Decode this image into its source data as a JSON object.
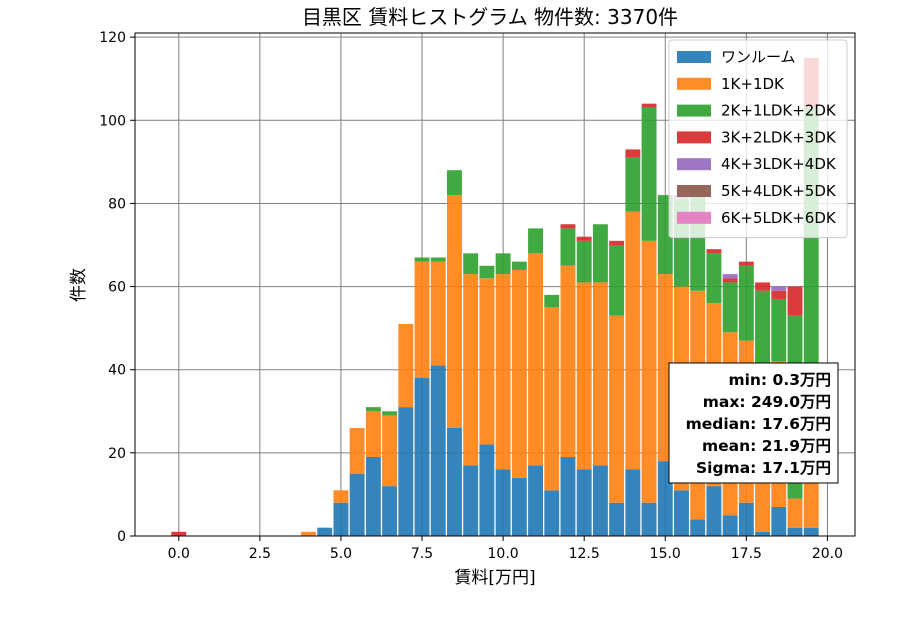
{
  "chart_data": {
    "type": "bar",
    "stacked": true,
    "title": "目黒区 賃料ヒストグラム  物件数: 3370件",
    "xlabel": "賃料[万円]",
    "ylabel": "件数",
    "xlim": [
      -1.35,
      20.85
    ],
    "ylim": [
      0,
      121
    ],
    "xticks": [
      "0.0",
      "2.5",
      "5.0",
      "7.5",
      "10.0",
      "12.5",
      "15.0",
      "17.5",
      "20.0"
    ],
    "yticks": [
      "0",
      "20",
      "40",
      "60",
      "80",
      "100",
      "120"
    ],
    "grid": true,
    "bin_width": 0.5,
    "bar_width": 0.46,
    "x": [
      0,
      4,
      4.5,
      5,
      5.5,
      6,
      6.5,
      7,
      7.5,
      8,
      8.5,
      9,
      9.5,
      10,
      10.5,
      11,
      11.5,
      12,
      12.5,
      13,
      13.5,
      14,
      14.5,
      15,
      15.5,
      16,
      16.5,
      17,
      17.5,
      18,
      18.5,
      19,
      19.5
    ],
    "series": [
      {
        "name": "ワンルーム",
        "color": "#1f77b4",
        "values": [
          0,
          0,
          2,
          8,
          15,
          19,
          12,
          31,
          38,
          41,
          26,
          17,
          22,
          16,
          14,
          17,
          11,
          19,
          16,
          17,
          8,
          16,
          8,
          18,
          11,
          4,
          12,
          5,
          8,
          1,
          7,
          2,
          2
        ]
      },
      {
        "name": "1K+1DK",
        "color": "#ff7f0e",
        "values": [
          0,
          1,
          0,
          3,
          11,
          11,
          17,
          20,
          28,
          25,
          56,
          46,
          40,
          47,
          50,
          51,
          44,
          46,
          45,
          44,
          45,
          62,
          63,
          45,
          49,
          55,
          44,
          44,
          39,
          35,
          35,
          7,
          14
        ]
      },
      {
        "name": "2K+1LDK+2DK",
        "color": "#2ca02c",
        "values": [
          0,
          0,
          0,
          0,
          0,
          1,
          1,
          0,
          1,
          1,
          6,
          5,
          3,
          5,
          2,
          6,
          3,
          9,
          10,
          14,
          17,
          13,
          32,
          19,
          21,
          25,
          12,
          12,
          18,
          23,
          15,
          44,
          87
        ]
      },
      {
        "name": "3K+2LDK+3DK",
        "color": "#d62728",
        "values": [
          1,
          0,
          0,
          0,
          0,
          0,
          0,
          0,
          0,
          0,
          0,
          0,
          0,
          0,
          0,
          0,
          0,
          1,
          1,
          0,
          1,
          2,
          1,
          0,
          0,
          0,
          1,
          1,
          1,
          2,
          2,
          7,
          12
        ]
      },
      {
        "name": "4K+3LDK+4DK",
        "color": "#9467bd",
        "values": [
          0,
          0,
          0,
          0,
          0,
          0,
          0,
          0,
          0,
          0,
          0,
          0,
          0,
          0,
          0,
          0,
          0,
          0,
          0,
          0,
          0,
          0,
          0,
          0,
          1,
          0,
          0,
          1,
          0,
          0,
          1,
          0,
          0
        ]
      },
      {
        "name": "5K+4LDK+5DK",
        "color": "#8c564b",
        "values": [
          0,
          0,
          0,
          0,
          0,
          0,
          0,
          0,
          0,
          0,
          0,
          0,
          0,
          0,
          0,
          0,
          0,
          0,
          0,
          0,
          0,
          0,
          0,
          0,
          0,
          0,
          0,
          0,
          0,
          0,
          0,
          0,
          0
        ]
      },
      {
        "name": "6K+5LDK+6DK",
        "color": "#e377c2",
        "values": [
          0,
          0,
          0,
          0,
          0,
          0,
          0,
          0,
          0,
          0,
          0,
          0,
          0,
          0,
          0,
          0,
          0,
          0,
          0,
          0,
          0,
          0,
          0,
          0,
          0,
          0,
          0,
          0,
          0,
          0,
          0,
          0,
          0
        ]
      }
    ],
    "legend_position": "top-right",
    "stats_lines": [
      "min: 0.3万円",
      "max: 249.0万円",
      "median: 17.6万円",
      "mean: 21.9万円",
      "Sigma: 17.1万円"
    ]
  }
}
